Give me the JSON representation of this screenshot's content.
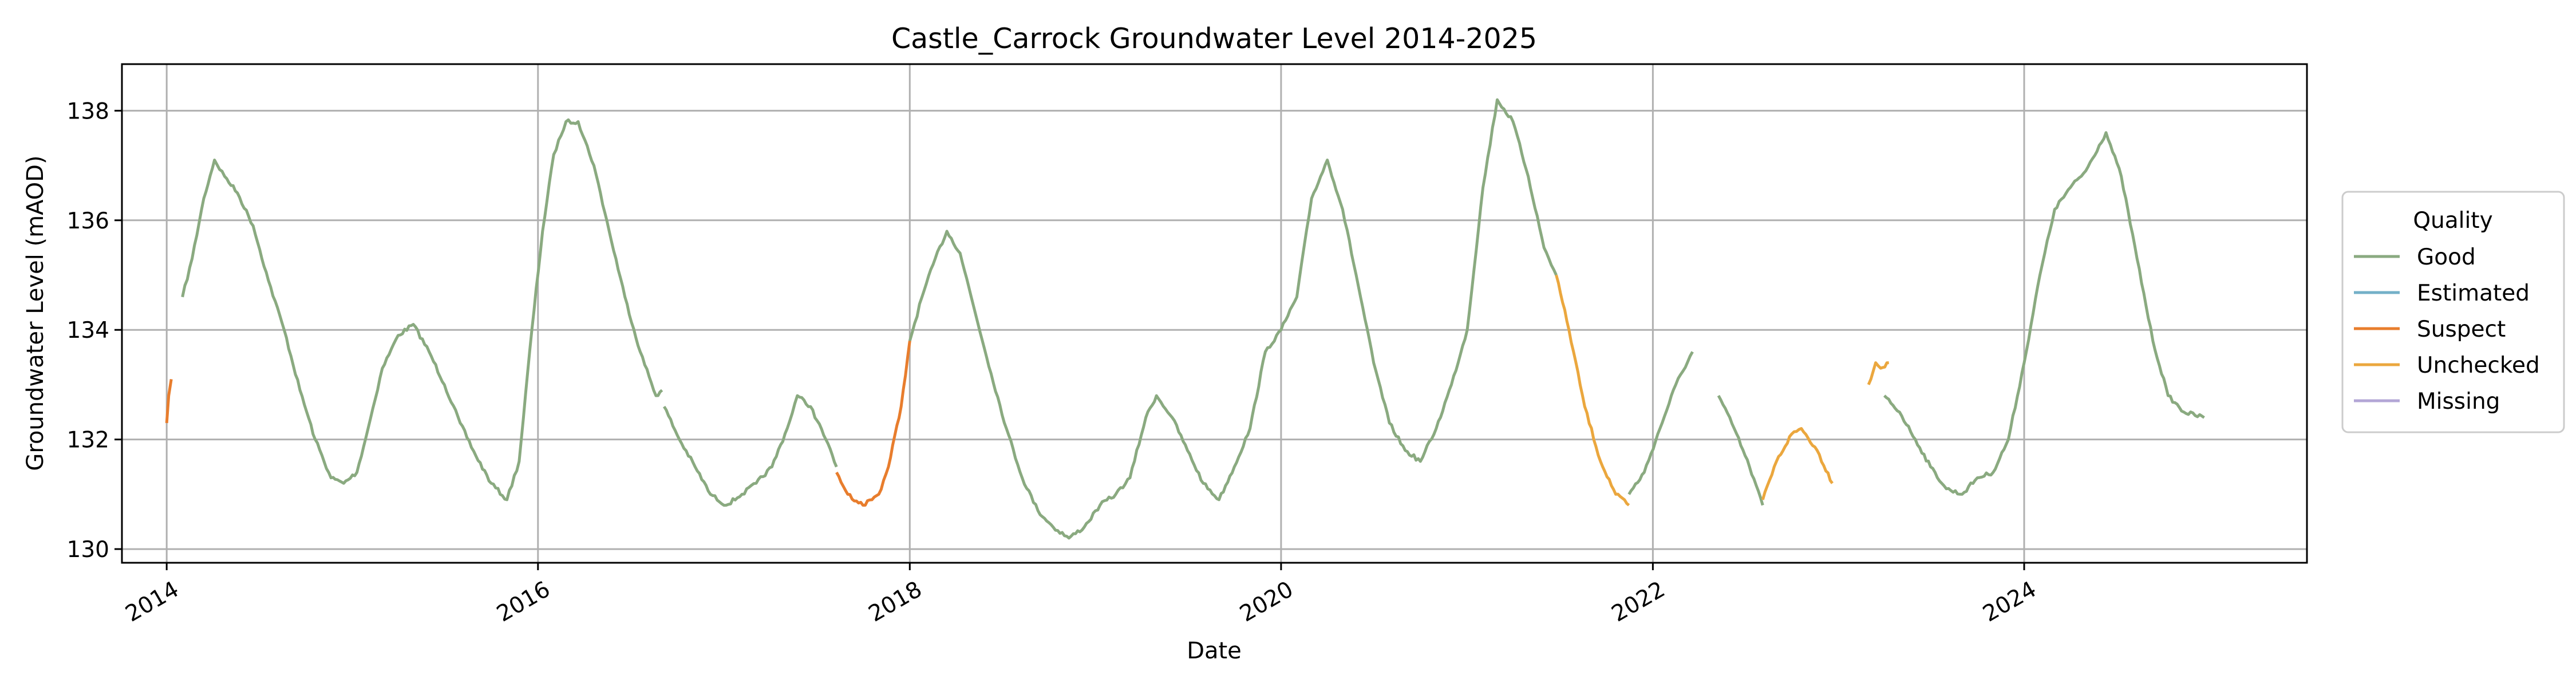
{
  "chart_data": {
    "type": "line",
    "title": "Castle_Carrock Groundwater Level 2014-2025",
    "xlabel": "Date",
    "ylabel": "Groundwater Level (mAOD)",
    "xlim": [
      "2013-10-05",
      "2025-07-10"
    ],
    "ylim": [
      129.75,
      138.85
    ],
    "x_ticks": [
      "2014",
      "2016",
      "2018",
      "2020",
      "2022",
      "2024"
    ],
    "y_ticks": [
      130,
      132,
      134,
      136,
      138
    ],
    "grid": true,
    "legend": {
      "title": "Quality",
      "position": "right",
      "entries": [
        "Good",
        "Estimated",
        "Suspect",
        "Unchecked",
        "Missing"
      ]
    },
    "series": [
      {
        "name": "Good",
        "color": "#8aaa80",
        "segments": [
          [
            [
              "2014-02-01",
              134.6
            ],
            [
              "2014-02-20",
              135.3
            ],
            [
              "2014-03-15",
              136.4
            ],
            [
              "2014-04-05",
              137.1
            ],
            [
              "2014-04-25",
              136.8
            ],
            [
              "2014-05-20",
              136.5
            ],
            [
              "2014-06-20",
              135.9
            ],
            [
              "2014-07-20",
              134.9
            ],
            [
              "2014-08-20",
              134.0
            ],
            [
              "2014-09-20",
              132.9
            ],
            [
              "2014-10-20",
              132.0
            ],
            [
              "2014-11-20",
              131.3
            ],
            [
              "2014-12-15",
              131.2
            ],
            [
              "2015-01-10",
              131.4
            ],
            [
              "2015-02-01",
              132.2
            ],
            [
              "2015-03-01",
              133.3
            ],
            [
              "2015-04-01",
              133.9
            ],
            [
              "2015-05-01",
              134.1
            ],
            [
              "2015-06-01",
              133.6
            ],
            [
              "2015-07-01",
              133.0
            ],
            [
              "2015-08-01",
              132.3
            ],
            [
              "2015-09-01",
              131.7
            ],
            [
              "2015-10-01",
              131.2
            ],
            [
              "2015-11-01",
              130.9
            ],
            [
              "2015-11-25",
              131.6
            ],
            [
              "2015-12-20",
              134.0
            ],
            [
              "2016-01-10",
              135.8
            ],
            [
              "2016-02-01",
              137.2
            ],
            [
              "2016-02-25",
              137.8
            ],
            [
              "2016-03-20",
              137.8
            ],
            [
              "2016-04-20",
              137.0
            ],
            [
              "2016-05-20",
              135.8
            ],
            [
              "2016-06-20",
              134.6
            ],
            [
              "2016-07-20",
              133.6
            ],
            [
              "2016-08-20",
              132.8
            ],
            [
              "2016-09-01",
              132.9
            ]
          ],
          [
            [
              "2016-09-05",
              132.6
            ],
            [
              "2016-10-05",
              132.0
            ],
            [
              "2016-11-05",
              131.5
            ],
            [
              "2016-12-05",
              131.0
            ],
            [
              "2017-01-05",
              130.8
            ],
            [
              "2017-02-05",
              131.0
            ],
            [
              "2017-03-05",
              131.2
            ],
            [
              "2017-04-05",
              131.5
            ],
            [
              "2017-05-05",
              132.2
            ],
            [
              "2017-05-25",
              132.8
            ],
            [
              "2017-06-20",
              132.6
            ],
            [
              "2017-07-20",
              132.0
            ],
            [
              "2017-08-10",
              131.5
            ]
          ],
          [
            [
              "2018-01-01",
              133.8
            ],
            [
              "2018-01-25",
              134.6
            ],
            [
              "2018-02-20",
              135.3
            ],
            [
              "2018-03-15",
              135.8
            ],
            [
              "2018-04-10",
              135.4
            ],
            [
              "2018-05-10",
              134.3
            ],
            [
              "2018-06-10",
              133.2
            ],
            [
              "2018-07-10",
              132.2
            ],
            [
              "2018-08-10",
              131.3
            ],
            [
              "2018-09-10",
              130.7
            ],
            [
              "2018-10-10",
              130.4
            ],
            [
              "2018-11-10",
              130.2
            ],
            [
              "2018-12-10",
              130.4
            ],
            [
              "2019-01-10",
              130.8
            ],
            [
              "2019-02-10",
              131.0
            ],
            [
              "2019-03-10",
              131.3
            ],
            [
              "2019-04-10",
              132.4
            ],
            [
              "2019-05-01",
              132.8
            ],
            [
              "2019-06-01",
              132.4
            ],
            [
              "2019-07-01",
              131.8
            ],
            [
              "2019-08-01",
              131.2
            ],
            [
              "2019-09-01",
              130.9
            ],
            [
              "2019-10-01",
              131.5
            ],
            [
              "2019-11-01",
              132.2
            ],
            [
              "2019-12-01",
              133.6
            ],
            [
              "2020-01-01",
              134.0
            ],
            [
              "2020-02-01",
              134.6
            ],
            [
              "2020-03-01",
              136.4
            ],
            [
              "2020-04-01",
              137.1
            ],
            [
              "2020-05-01",
              136.2
            ],
            [
              "2020-06-01",
              134.8
            ],
            [
              "2020-07-01",
              133.4
            ],
            [
              "2020-08-01",
              132.3
            ],
            [
              "2020-09-01",
              131.8
            ],
            [
              "2020-10-01",
              131.6
            ],
            [
              "2020-11-01",
              132.2
            ],
            [
              "2020-12-01",
              133.0
            ],
            [
              "2021-01-01",
              134.0
            ],
            [
              "2021-02-01",
              136.6
            ],
            [
              "2021-03-01",
              138.2
            ],
            [
              "2021-04-01",
              137.8
            ],
            [
              "2021-05-01",
              136.8
            ],
            [
              "2021-06-01",
              135.5
            ],
            [
              "2021-06-25",
              135.0
            ]
          ],
          [
            [
              "2021-11-15",
              131.0
            ],
            [
              "2021-12-15",
              131.4
            ],
            [
              "2022-01-15",
              132.2
            ],
            [
              "2022-02-15",
              133.0
            ],
            [
              "2022-03-20",
              133.6
            ]
          ],
          [
            [
              "2022-05-10",
              132.8
            ],
            [
              "2022-06-10",
              132.2
            ],
            [
              "2022-07-10",
              131.5
            ],
            [
              "2022-08-05",
              130.8
            ]
          ],
          [
            [
              "2023-04-01",
              132.8
            ],
            [
              "2023-05-01",
              132.5
            ],
            [
              "2023-06-01",
              132.0
            ],
            [
              "2023-07-01",
              131.5
            ],
            [
              "2023-08-01",
              131.1
            ],
            [
              "2023-09-01",
              131.0
            ],
            [
              "2023-10-01",
              131.3
            ],
            [
              "2023-11-01",
              131.4
            ],
            [
              "2023-12-01",
              132.0
            ],
            [
              "2024-01-01",
              133.4
            ],
            [
              "2024-02-01",
              135.0
            ],
            [
              "2024-03-01",
              136.2
            ],
            [
              "2024-04-01",
              136.6
            ],
            [
              "2024-05-01",
              136.9
            ],
            [
              "2024-06-10",
              137.6
            ],
            [
              "2024-07-10",
              136.8
            ],
            [
              "2024-08-10",
              135.3
            ],
            [
              "2024-09-10",
              133.8
            ],
            [
              "2024-10-10",
              132.8
            ],
            [
              "2024-11-10",
              132.5
            ],
            [
              "2024-12-20",
              132.4
            ]
          ]
        ]
      },
      {
        "name": "Estimated",
        "color": "#74b0c8",
        "segments": []
      },
      {
        "name": "Suspect",
        "color": "#e87d2d",
        "segments": [
          [
            [
              "2014-01-01",
              132.3
            ],
            [
              "2014-01-05",
              132.8
            ],
            [
              "2014-01-10",
              133.1
            ]
          ],
          [
            [
              "2017-08-10",
              131.4
            ],
            [
              "2017-09-01",
              131.0
            ],
            [
              "2017-10-01",
              130.8
            ],
            [
              "2017-11-01",
              131.0
            ],
            [
              "2017-11-20",
              131.5
            ],
            [
              "2017-12-15",
              132.6
            ],
            [
              "2018-01-01",
              133.8
            ]
          ]
        ]
      },
      {
        "name": "Unchecked",
        "color": "#eba73e",
        "segments": [
          [
            [
              "2021-06-25",
              135.0
            ],
            [
              "2021-07-20",
              134.0
            ],
            [
              "2021-08-20",
              132.6
            ],
            [
              "2021-09-20",
              131.6
            ],
            [
              "2021-10-20",
              131.0
            ],
            [
              "2021-11-15",
              130.8
            ]
          ],
          [
            [
              "2022-08-05",
              130.9
            ],
            [
              "2022-09-01",
              131.6
            ],
            [
              "2022-10-01",
              132.1
            ],
            [
              "2022-10-20",
              132.2
            ],
            [
              "2022-11-20",
              131.8
            ],
            [
              "2022-12-20",
              131.2
            ]
          ],
          [
            [
              "2023-03-01",
              133.0
            ],
            [
              "2023-03-15",
              133.4
            ],
            [
              "2023-03-25",
              133.3
            ],
            [
              "2023-04-10",
              133.4
            ]
          ]
        ]
      },
      {
        "name": "Missing",
        "color": "#b3a6d6",
        "segments": []
      }
    ]
  }
}
